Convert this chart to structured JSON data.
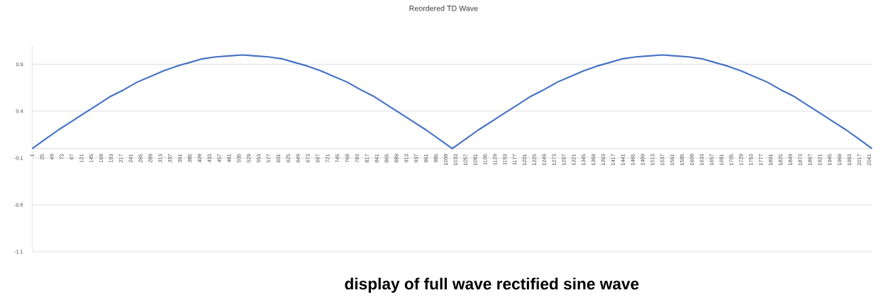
{
  "chart_data": {
    "type": "line",
    "title": "Reordered TD Wave",
    "x": [
      1,
      33,
      65,
      97,
      129,
      161,
      193,
      225,
      257,
      289,
      321,
      353,
      385,
      417,
      449,
      481,
      513,
      545,
      577,
      609,
      641,
      673,
      705,
      737,
      769,
      801,
      833,
      865,
      897,
      929,
      961,
      993,
      1025,
      1057,
      1089,
      1121,
      1153,
      1185,
      1217,
      1249,
      1281,
      1313,
      1345,
      1377,
      1409,
      1441,
      1473,
      1505,
      1537,
      1569,
      1601,
      1633,
      1665,
      1697,
      1729,
      1761,
      1793,
      1825,
      1857,
      1889,
      1921,
      1953,
      1985,
      2017,
      2048
    ],
    "series": [
      {
        "color": "#4472c4",
        "values": [
          0,
          0.1,
          0.2,
          0.29,
          0.38,
          0.47,
          0.56,
          0.63,
          0.71,
          0.77,
          0.83,
          0.88,
          0.92,
          0.96,
          0.98,
          0.99,
          1,
          0.99,
          0.98,
          0.96,
          0.92,
          0.88,
          0.83,
          0.77,
          0.71,
          0.63,
          0.56,
          0.47,
          0.38,
          0.29,
          0.2,
          0.1,
          0,
          0.1,
          0.2,
          0.29,
          0.38,
          0.47,
          0.56,
          0.63,
          0.71,
          0.77,
          0.83,
          0.88,
          0.92,
          0.96,
          0.98,
          0.99,
          1,
          0.99,
          0.98,
          0.96,
          0.92,
          0.88,
          0.83,
          0.77,
          0.71,
          0.63,
          0.56,
          0.47,
          0.38,
          0.29,
          0.2,
          0.1,
          0
        ]
      }
    ],
    "xlim": [
      1,
      2048
    ],
    "xticks": [
      1,
      25,
      49,
      73,
      97,
      121,
      145,
      169,
      193,
      217,
      241,
      265,
      289,
      313,
      337,
      361,
      385,
      409,
      433,
      457,
      481,
      505,
      529,
      553,
      577,
      601,
      625,
      649,
      673,
      697,
      721,
      745,
      769,
      793,
      817,
      841,
      865,
      889,
      913,
      937,
      961,
      985,
      1009,
      1033,
      1057,
      1081,
      1105,
      1129,
      1153,
      1177,
      1201,
      1225,
      1249,
      1273,
      1297,
      1321,
      1345,
      1369,
      1393,
      1417,
      1441,
      1465,
      1489,
      1513,
      1537,
      1561,
      1585,
      1609,
      1633,
      1657,
      1681,
      1705,
      1729,
      1753,
      1777,
      1801,
      1825,
      1849,
      1873,
      1897,
      1921,
      1945,
      1969,
      1993,
      2017,
      2041
    ],
    "ylim": [
      -1.1,
      1.1
    ],
    "yticks": [
      -1.1,
      -0.6,
      -0.1,
      0.4,
      0.9
    ],
    "grid": "y",
    "marker": "none",
    "line_style": "solid",
    "annotations": [
      "display of full wave rectified sine wave"
    ]
  }
}
